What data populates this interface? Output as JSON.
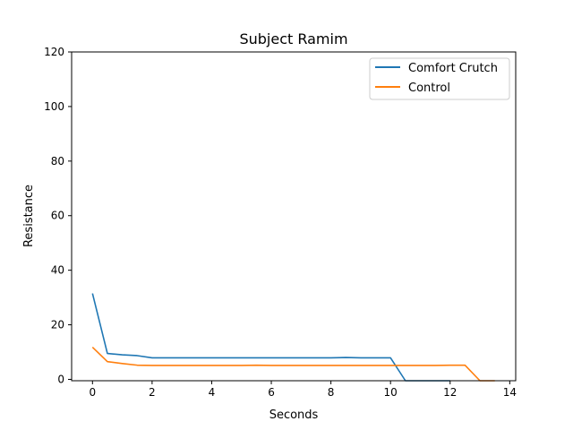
{
  "chart_data": {
    "type": "line",
    "title": "Subject Ramim",
    "xlabel": "Seconds",
    "ylabel": "Resistance",
    "xlim": [
      -0.7,
      14.2
    ],
    "ylim": [
      -0.5,
      120
    ],
    "xticks": [
      0,
      2,
      4,
      6,
      8,
      10,
      12,
      14
    ],
    "yticks": [
      0,
      20,
      40,
      60,
      80,
      100,
      120
    ],
    "grid": false,
    "legend_position": "top-right",
    "series": [
      {
        "name": "Comfort Crutch",
        "color": "#1f77b4",
        "x": [
          0,
          0.5,
          1,
          1.5,
          2,
          2.5,
          3,
          3.5,
          4,
          4.5,
          5,
          5.5,
          6,
          6.5,
          7,
          7.5,
          8,
          8.5,
          9,
          9.5,
          10,
          10.5,
          11,
          11.5,
          12
        ],
        "y": [
          31.5,
          9.5,
          9.0,
          8.7,
          7.9,
          7.9,
          7.9,
          7.9,
          7.9,
          7.9,
          7.9,
          7.9,
          7.9,
          7.9,
          7.9,
          7.9,
          7.9,
          8.0,
          7.9,
          7.9,
          7.9,
          -0.5,
          -0.5,
          -0.5,
          -0.5
        ]
      },
      {
        "name": "Control",
        "color": "#ff7f0e",
        "x": [
          0,
          0.5,
          1,
          1.5,
          2,
          2.5,
          3,
          3.5,
          4,
          4.5,
          5,
          5.5,
          6,
          6.5,
          7,
          7.5,
          8,
          8.5,
          9,
          9.5,
          10,
          10.5,
          11,
          11.5,
          12,
          12.5,
          13,
          13.5
        ],
        "y": [
          11.8,
          6.5,
          5.8,
          5.2,
          5.1,
          5.1,
          5.1,
          5.1,
          5.1,
          5.1,
          5.1,
          5.2,
          5.1,
          5.1,
          5.1,
          5.1,
          5.1,
          5.1,
          5.1,
          5.1,
          5.1,
          5.1,
          5.1,
          5.1,
          5.2,
          5.2,
          -0.5,
          -0.5
        ]
      }
    ]
  }
}
